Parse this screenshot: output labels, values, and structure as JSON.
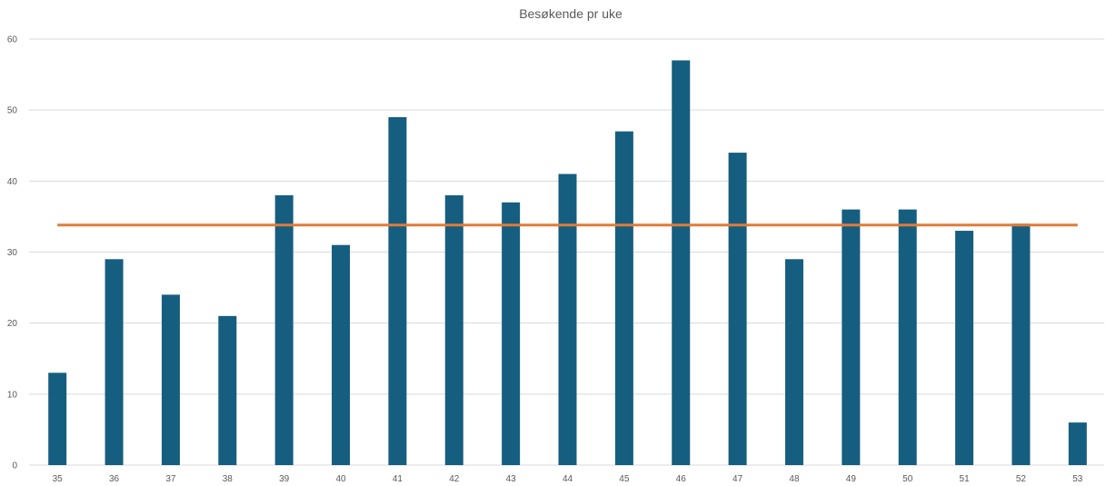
{
  "chart_data": {
    "type": "bar",
    "title": "Besøkende pr uke",
    "xlabel": "",
    "ylabel": "",
    "categories": [
      "35",
      "36",
      "37",
      "38",
      "39",
      "40",
      "41",
      "42",
      "43",
      "44",
      "45",
      "46",
      "47",
      "48",
      "49",
      "50",
      "51",
      "52",
      "53"
    ],
    "series": [
      {
        "type": "bar",
        "values": [
          13,
          29,
          24,
          21,
          38,
          31,
          49,
          38,
          37,
          41,
          47,
          57,
          44,
          29,
          36,
          36,
          33,
          34,
          6
        ]
      },
      {
        "type": "line",
        "values": [
          33.8,
          33.8,
          33.8,
          33.8,
          33.8,
          33.8,
          33.8,
          33.8,
          33.8,
          33.8,
          33.8,
          33.8,
          33.8,
          33.8,
          33.8,
          33.8,
          33.8,
          33.8,
          33.8
        ]
      }
    ],
    "ylim": [
      0,
      60
    ],
    "yticks": [
      0,
      10,
      20,
      30,
      40,
      50,
      60
    ],
    "grid": true,
    "colors": {
      "bar": "#165E80",
      "line": "#E07B39",
      "grid": "#D9D9D9"
    }
  }
}
